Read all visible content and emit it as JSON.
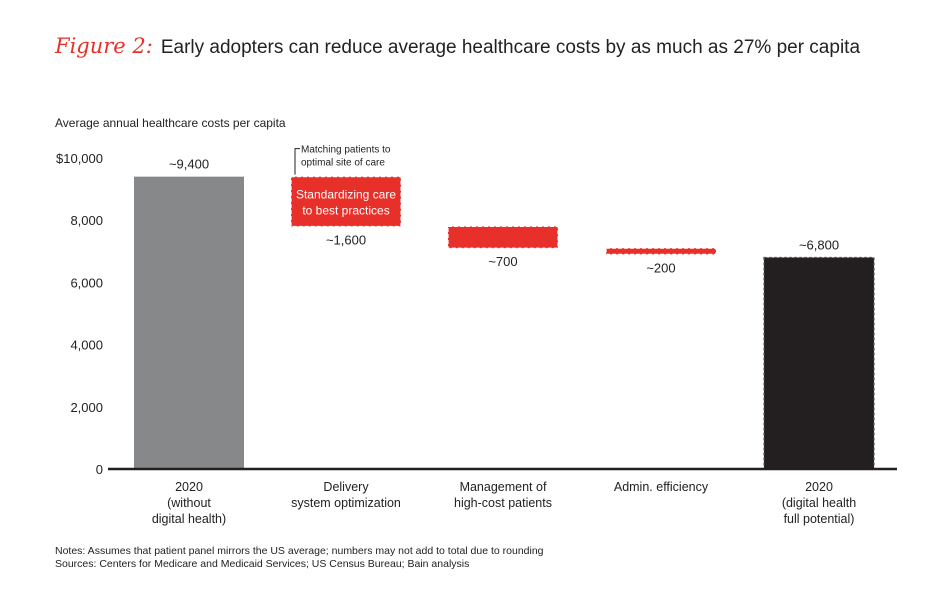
{
  "header": {
    "figure_label": "Figure 2:",
    "title": "Early adopters can reduce average healthcare costs by as much as 27% per capita"
  },
  "colors": {
    "baseline_bar": "#87888a",
    "reduction_bar": "#e8302a",
    "final_bar": "#231f20",
    "axis": "#231f20"
  },
  "chart_data": {
    "type": "bar",
    "subtype": "waterfall",
    "ylabel": "Average annual healthcare costs per capita",
    "ylim": [
      0,
      10000
    ],
    "yticks": [
      0,
      2000,
      4000,
      6000,
      8000,
      10000
    ],
    "ytick_labels": [
      "0",
      "2,000",
      "4,000",
      "6,000",
      "8,000",
      "$10,000"
    ],
    "categories": [
      [
        "2020",
        "(without",
        "digital health)"
      ],
      [
        "Delivery",
        "system optimization"
      ],
      [
        "Management of",
        "high-cost patients"
      ],
      [
        "Admin. efficiency"
      ],
      [
        "2020",
        "(digital health",
        "full potential)"
      ]
    ],
    "bars": [
      {
        "kind": "total",
        "start": 0,
        "end": 9400,
        "label": "~9,400",
        "label_pos": "above"
      },
      {
        "kind": "decrease",
        "start": 9400,
        "end": 7800,
        "label": "~1,600",
        "label_pos": "below",
        "inner_label": [
          "Standardizing care",
          "to best practices"
        ],
        "annotation": [
          "Matching patients to",
          "optimal site of care"
        ]
      },
      {
        "kind": "decrease",
        "start": 7800,
        "end": 7100,
        "label": "~700",
        "label_pos": "below"
      },
      {
        "kind": "decrease",
        "start": 7100,
        "end": 6900,
        "label": "~200",
        "label_pos": "below"
      },
      {
        "kind": "total_final",
        "start": 0,
        "end": 6800,
        "label": "~6,800",
        "label_pos": "above"
      }
    ]
  },
  "notes": {
    "line1": "Notes: Assumes that patient panel mirrors the US average; numbers may not add to total due to rounding",
    "line2": "Sources: Centers for Medicare and Medicaid Services; US Census Bureau; Bain analysis"
  }
}
